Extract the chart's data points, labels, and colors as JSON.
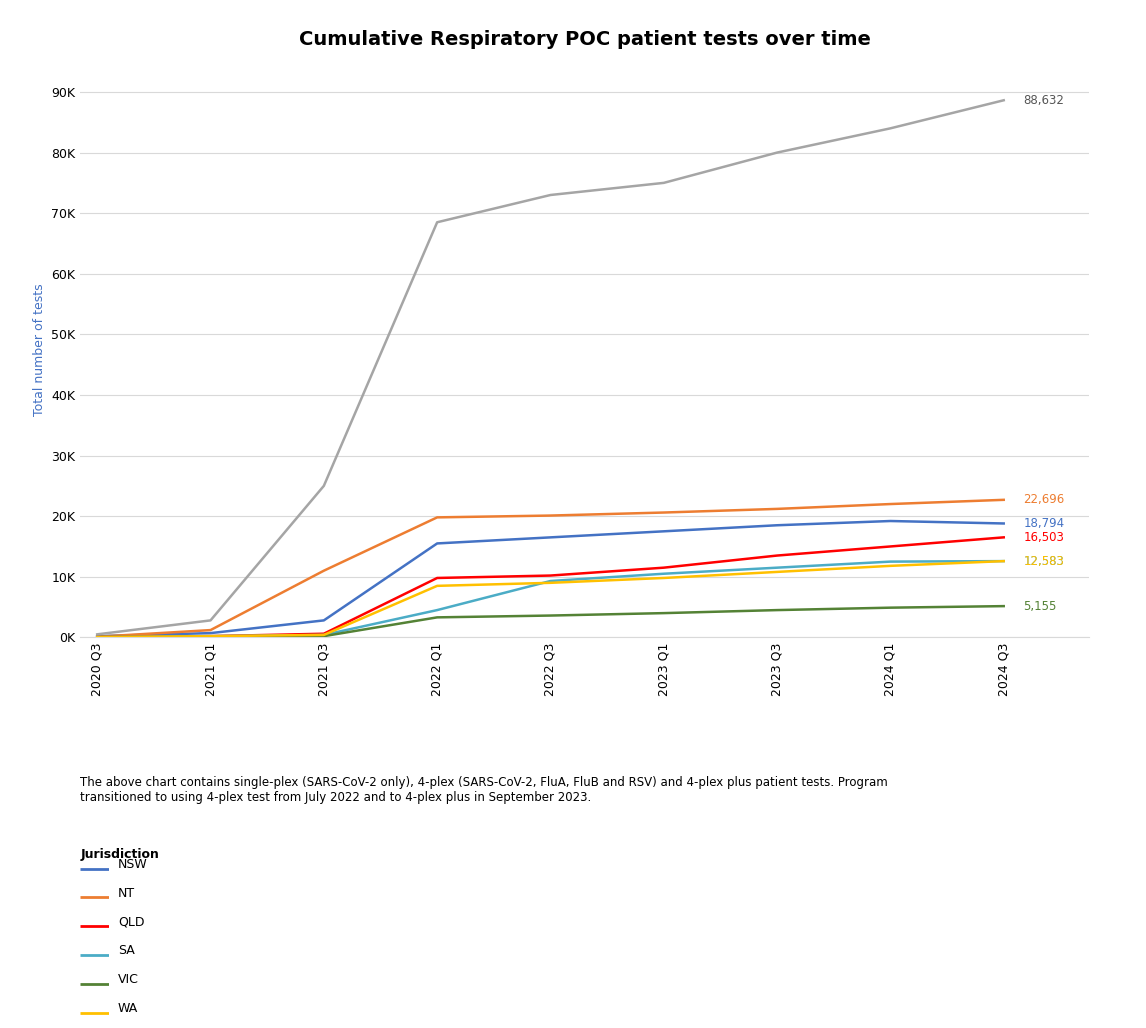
{
  "title": "Cumulative Respiratory POC patient tests over time",
  "ylabel": "Total number of tests",
  "x_labels": [
    "2020 Q3",
    "2021 Q1",
    "2021 Q3",
    "2022 Q1",
    "2022 Q3",
    "2023 Q1",
    "2023 Q3",
    "2024 Q1",
    "2024 Q3"
  ],
  "x_positions": [
    0,
    2,
    4,
    6,
    8,
    10,
    12,
    14,
    16
  ],
  "series": {
    "NSW": {
      "color": "#4472C4",
      "values": [
        200,
        700,
        2800,
        15500,
        16500,
        17500,
        18500,
        19200,
        18794
      ],
      "final_label": "18,794"
    },
    "NT": {
      "color": "#ED7D31",
      "values": [
        100,
        1200,
        11000,
        19800,
        20100,
        20600,
        21200,
        22000,
        22696
      ],
      "final_label": "22,696"
    },
    "QLD": {
      "color": "#FF0000",
      "values": [
        50,
        200,
        600,
        9800,
        10200,
        11500,
        13500,
        15000,
        16503
      ],
      "final_label": "16,503"
    },
    "SA": {
      "color": "#4BACC6",
      "values": [
        50,
        200,
        400,
        4500,
        9300,
        10500,
        11500,
        12500,
        12583
      ],
      "final_label": "12,583"
    },
    "VIC": {
      "color": "#548235",
      "values": [
        50,
        100,
        200,
        3300,
        3600,
        4000,
        4500,
        4900,
        5155
      ],
      "final_label": "5,155"
    },
    "WA": {
      "color": "#FFC000",
      "values": [
        50,
        200,
        400,
        8500,
        9000,
        9800,
        10800,
        11800,
        12583
      ],
      "final_label": "12,583"
    },
    "Total no of patient tests": {
      "color": "#A5A5A5",
      "values": [
        500,
        2800,
        25000,
        68500,
        73000,
        75000,
        80000,
        84000,
        88632
      ],
      "final_label": "88,632"
    }
  },
  "ylim": [
    0,
    95000
  ],
  "yticks": [
    0,
    10000,
    20000,
    30000,
    40000,
    50000,
    60000,
    70000,
    80000,
    90000
  ],
  "ytick_labels": [
    "0K",
    "10K",
    "20K",
    "30K",
    "40K",
    "50K",
    "60K",
    "70K",
    "80K",
    "90K"
  ],
  "footnote": "The above chart contains single-plex (SARS-CoV-2 only), 4-plex (SARS-CoV-2, FluA, FluB and RSV) and 4-plex plus patient tests. Program\ntransitioned to using 4-plex test from July 2022 and to 4-plex plus in September 2023.",
  "legend_title": "Jurisdiction",
  "background_color": "#FFFFFF"
}
